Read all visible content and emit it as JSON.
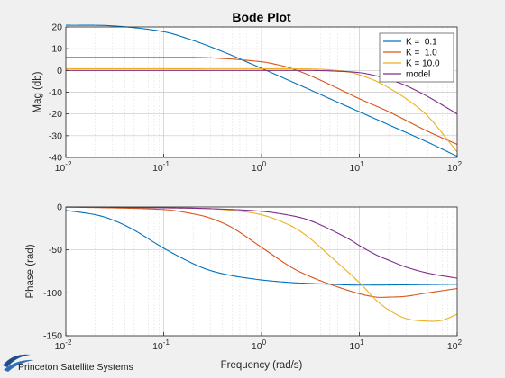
{
  "chart_data": [
    {
      "type": "line",
      "title": "Bode Plot",
      "xlabel": "",
      "ylabel": "Mag   (db)",
      "xscale": "log",
      "xlim": [
        0.01,
        100
      ],
      "ylim": [
        -40,
        20
      ],
      "xticks": [
        {
          "base": "10",
          "exp": "-2"
        },
        {
          "base": "10",
          "exp": "-1"
        },
        {
          "base": "10",
          "exp": "0"
        },
        {
          "base": "10",
          "exp": "1"
        },
        {
          "base": "10",
          "exp": "2"
        }
      ],
      "yticks": [
        "20",
        "10",
        "0",
        "-10",
        "-20",
        "-30",
        "-40"
      ],
      "grid": true,
      "legend_position": "top-right",
      "series": [
        {
          "name": "K =  0.1",
          "color": "#0072bd",
          "x": [
            0.01,
            0.03,
            0.1,
            0.2,
            0.3,
            0.5,
            0.7,
            1,
            2,
            3,
            5,
            10,
            20,
            50,
            100
          ],
          "y": [
            20.8,
            20.5,
            17.8,
            13.8,
            10.9,
            6.9,
            4.0,
            1.0,
            -5.0,
            -8.5,
            -13.0,
            -19.0,
            -25.0,
            -33.0,
            -39.5
          ]
        },
        {
          "name": "K =  1.0",
          "color": "#d95319",
          "x": [
            0.01,
            0.1,
            0.3,
            1,
            1.5,
            2,
            3,
            5,
            10,
            20,
            50,
            100
          ],
          "y": [
            6.0,
            6.0,
            5.8,
            4.0,
            2.5,
            1.0,
            -2.0,
            -6.5,
            -13.0,
            -19.0,
            -28.0,
            -34.0
          ]
        },
        {
          "name": "K = 10.0",
          "color": "#edb120",
          "x": [
            0.01,
            0.1,
            1,
            3,
            5,
            8,
            10,
            15,
            20,
            30,
            50,
            100
          ],
          "y": [
            0.8,
            0.8,
            0.8,
            0.7,
            0.3,
            -0.8,
            -2.0,
            -5.0,
            -8.0,
            -13.0,
            -21.0,
            -37.5
          ]
        },
        {
          "name": "model",
          "color": "#7e2f8e",
          "x": [
            0.01,
            0.1,
            1,
            3,
            5,
            10,
            15,
            20,
            30,
            50,
            100
          ],
          "y": [
            0.0,
            0.0,
            0.0,
            0.0,
            -0.2,
            -1.0,
            -2.5,
            -4.0,
            -7.0,
            -12.0,
            -20.0
          ]
        }
      ]
    },
    {
      "type": "line",
      "title": "",
      "xlabel": "Frequency (rad/s)",
      "ylabel": "Phase (rad)",
      "xscale": "log",
      "xlim": [
        0.01,
        100
      ],
      "ylim": [
        -150,
        0
      ],
      "xticks": [
        {
          "base": "10",
          "exp": "-2"
        },
        {
          "base": "10",
          "exp": "-1"
        },
        {
          "base": "10",
          "exp": "0"
        },
        {
          "base": "10",
          "exp": "1"
        },
        {
          "base": "10",
          "exp": "2"
        }
      ],
      "yticks": [
        "0",
        "-50",
        "-100",
        "-150"
      ],
      "grid": true,
      "series": [
        {
          "name": "K =  0.1",
          "color": "#0072bd",
          "x": [
            0.01,
            0.02,
            0.03,
            0.05,
            0.1,
            0.2,
            0.3,
            0.5,
            1,
            2,
            5,
            10,
            100
          ],
          "y": [
            -4,
            -9,
            -15,
            -27,
            -48,
            -66,
            -74,
            -80,
            -85,
            -88,
            -90,
            -91,
            -90
          ]
        },
        {
          "name": "K =  1.0",
          "color": "#d95319",
          "x": [
            0.01,
            0.1,
            0.2,
            0.3,
            0.5,
            1,
            2,
            3,
            5,
            10,
            15,
            20,
            30,
            50,
            100
          ],
          "y": [
            0,
            -3,
            -8,
            -13,
            -24,
            -47,
            -70,
            -80,
            -90,
            -101,
            -105,
            -105,
            -104,
            -100,
            -95
          ]
        },
        {
          "name": "K = 10.0",
          "color": "#edb120",
          "x": [
            0.01,
            0.1,
            0.3,
            0.5,
            1,
            2,
            3,
            5,
            10,
            15,
            20,
            30,
            50,
            70,
            100
          ],
          "y": [
            0,
            -1,
            -2,
            -4,
            -9,
            -22,
            -35,
            -57,
            -88,
            -109,
            -120,
            -130,
            -133,
            -132,
            -125
          ]
        },
        {
          "name": "model",
          "color": "#7e2f8e",
          "x": [
            0.01,
            0.1,
            0.3,
            1,
            2,
            3,
            5,
            8,
            10,
            15,
            20,
            30,
            50,
            100
          ],
          "y": [
            0,
            -1,
            -2,
            -5,
            -10,
            -15,
            -26,
            -38,
            -45,
            -56,
            -62,
            -70,
            -77,
            -83
          ]
        }
      ]
    }
  ],
  "logo": {
    "text": "Princeton Satellite Systems"
  }
}
